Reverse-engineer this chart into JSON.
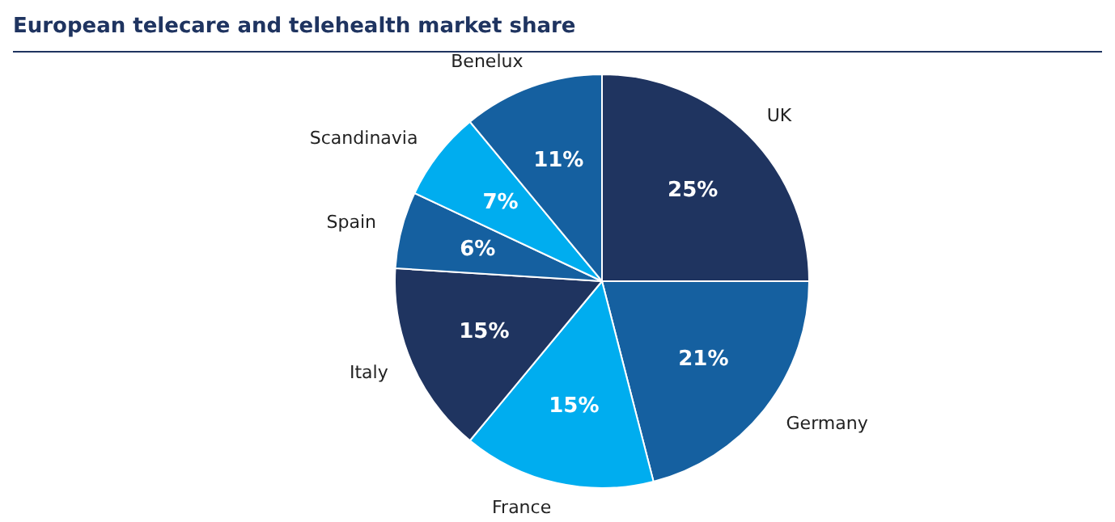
{
  "chart_data": {
    "type": "pie",
    "title": "European telecare and telehealth market share",
    "categories": [
      "UK",
      "Germany",
      "France",
      "Italy",
      "Spain",
      "Scandinavia",
      "Benelux"
    ],
    "values": [
      25,
      21,
      15,
      15,
      6,
      7,
      11
    ],
    "colors": [
      "#1f3460",
      "#1560a0",
      "#00adef",
      "#1f3460",
      "#1560a0",
      "#00adef",
      "#1560a0"
    ],
    "value_labels": [
      "25%",
      "21%",
      "15%",
      "15%",
      "6%",
      "7%",
      "11%"
    ]
  }
}
